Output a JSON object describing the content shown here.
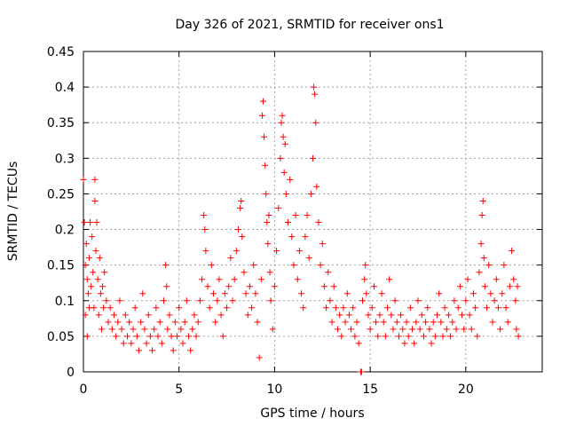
{
  "chart_data": {
    "type": "scatter",
    "title": "Day 326 of 2021, SRMTID for receiver ons1",
    "xlabel": "GPS time / hours",
    "ylabel": "SRMTID / TECUs",
    "xlim": [
      0,
      24
    ],
    "ylim": [
      0,
      0.45
    ],
    "x_ticks": [
      0,
      5,
      10,
      15,
      20
    ],
    "x_tick_labels": [
      "0",
      "5",
      "10",
      "15",
      "20"
    ],
    "y_ticks": [
      0,
      0.05,
      0.1,
      0.15,
      0.2,
      0.25,
      0.3,
      0.35,
      0.4,
      0.45
    ],
    "y_tick_labels": [
      "0",
      "0.05",
      "0.1",
      "0.15",
      "0.2",
      "0.25",
      "0.3",
      "0.35",
      "0.4",
      "0.45"
    ],
    "grid": true,
    "marker": "+",
    "marker_color": "#ff0000",
    "series": [
      {
        "name": "SRMTID",
        "points": [
          [
            0.0,
            0.27
          ],
          [
            0.05,
            0.21
          ],
          [
            0.1,
            0.15
          ],
          [
            0.1,
            0.08
          ],
          [
            0.15,
            0.18
          ],
          [
            0.2,
            0.13
          ],
          [
            0.2,
            0.05
          ],
          [
            0.25,
            0.11
          ],
          [
            0.3,
            0.16
          ],
          [
            0.3,
            0.09
          ],
          [
            0.35,
            0.21
          ],
          [
            0.4,
            0.12
          ],
          [
            0.45,
            0.19
          ],
          [
            0.5,
            0.14
          ],
          [
            0.55,
            0.09
          ],
          [
            0.6,
            0.27
          ],
          [
            0.6,
            0.24
          ],
          [
            0.65,
            0.17
          ],
          [
            0.7,
            0.21
          ],
          [
            0.75,
            0.13
          ],
          [
            0.8,
            0.08
          ],
          [
            0.85,
            0.16
          ],
          [
            0.9,
            0.11
          ],
          [
            0.95,
            0.06
          ],
          [
            1.0,
            0.12
          ],
          [
            1.05,
            0.09
          ],
          [
            1.1,
            0.14
          ],
          [
            1.2,
            0.1
          ],
          [
            1.3,
            0.07
          ],
          [
            1.4,
            0.09
          ],
          [
            1.5,
            0.06
          ],
          [
            1.6,
            0.08
          ],
          [
            1.7,
            0.05
          ],
          [
            1.8,
            0.07
          ],
          [
            1.9,
            0.1
          ],
          [
            2.0,
            0.06
          ],
          [
            2.1,
            0.04
          ],
          [
            2.2,
            0.08
          ],
          [
            2.3,
            0.05
          ],
          [
            2.4,
            0.07
          ],
          [
            2.5,
            0.04
          ],
          [
            2.6,
            0.06
          ],
          [
            2.7,
            0.09
          ],
          [
            2.8,
            0.05
          ],
          [
            2.9,
            0.03
          ],
          [
            3.0,
            0.07
          ],
          [
            3.1,
            0.11
          ],
          [
            3.2,
            0.06
          ],
          [
            3.3,
            0.04
          ],
          [
            3.4,
            0.08
          ],
          [
            3.5,
            0.05
          ],
          [
            3.6,
            0.03
          ],
          [
            3.7,
            0.06
          ],
          [
            3.8,
            0.09
          ],
          [
            3.9,
            0.05
          ],
          [
            4.0,
            0.07
          ],
          [
            4.1,
            0.04
          ],
          [
            4.2,
            0.1
          ],
          [
            4.3,
            0.15
          ],
          [
            4.35,
            0.12
          ],
          [
            4.4,
            0.06
          ],
          [
            4.5,
            0.08
          ],
          [
            4.6,
            0.05
          ],
          [
            4.7,
            0.03
          ],
          [
            4.8,
            0.07
          ],
          [
            4.9,
            0.05
          ],
          [
            5.0,
            0.09
          ],
          [
            5.1,
            0.06
          ],
          [
            5.2,
            0.04
          ],
          [
            5.3,
            0.07
          ],
          [
            5.4,
            0.1
          ],
          [
            5.5,
            0.05
          ],
          [
            5.6,
            0.03
          ],
          [
            5.7,
            0.06
          ],
          [
            5.8,
            0.08
          ],
          [
            5.9,
            0.05
          ],
          [
            6.0,
            0.07
          ],
          [
            6.1,
            0.1
          ],
          [
            6.2,
            0.13
          ],
          [
            6.3,
            0.22
          ],
          [
            6.35,
            0.2
          ],
          [
            6.4,
            0.17
          ],
          [
            6.5,
            0.12
          ],
          [
            6.6,
            0.09
          ],
          [
            6.7,
            0.15
          ],
          [
            6.8,
            0.11
          ],
          [
            6.9,
            0.07
          ],
          [
            7.0,
            0.1
          ],
          [
            7.1,
            0.13
          ],
          [
            7.2,
            0.08
          ],
          [
            7.3,
            0.05
          ],
          [
            7.4,
            0.11
          ],
          [
            7.5,
            0.09
          ],
          [
            7.6,
            0.12
          ],
          [
            7.7,
            0.16
          ],
          [
            7.8,
            0.1
          ],
          [
            7.9,
            0.13
          ],
          [
            8.0,
            0.17
          ],
          [
            8.1,
            0.2
          ],
          [
            8.2,
            0.23
          ],
          [
            8.25,
            0.24
          ],
          [
            8.3,
            0.19
          ],
          [
            8.4,
            0.14
          ],
          [
            8.5,
            0.11
          ],
          [
            8.6,
            0.08
          ],
          [
            8.7,
            0.12
          ],
          [
            8.8,
            0.09
          ],
          [
            8.9,
            0.15
          ],
          [
            9.0,
            0.11
          ],
          [
            9.1,
            0.07
          ],
          [
            9.2,
            0.02
          ],
          [
            9.3,
            0.13
          ],
          [
            9.35,
            0.36
          ],
          [
            9.4,
            0.38
          ],
          [
            9.45,
            0.33
          ],
          [
            9.5,
            0.29
          ],
          [
            9.55,
            0.25
          ],
          [
            9.6,
            0.21
          ],
          [
            9.65,
            0.18
          ],
          [
            9.7,
            0.22
          ],
          [
            9.75,
            0.14
          ],
          [
            9.8,
            0.1
          ],
          [
            9.9,
            0.06
          ],
          [
            10.0,
            0.12
          ],
          [
            10.1,
            0.17
          ],
          [
            10.2,
            0.23
          ],
          [
            10.3,
            0.3
          ],
          [
            10.35,
            0.35
          ],
          [
            10.4,
            0.36
          ],
          [
            10.45,
            0.33
          ],
          [
            10.5,
            0.28
          ],
          [
            10.55,
            0.32
          ],
          [
            10.6,
            0.25
          ],
          [
            10.7,
            0.21
          ],
          [
            10.8,
            0.27
          ],
          [
            10.9,
            0.19
          ],
          [
            11.0,
            0.15
          ],
          [
            11.1,
            0.22
          ],
          [
            11.2,
            0.13
          ],
          [
            11.3,
            0.17
          ],
          [
            11.4,
            0.11
          ],
          [
            11.5,
            0.09
          ],
          [
            11.6,
            0.19
          ],
          [
            11.7,
            0.22
          ],
          [
            11.8,
            0.16
          ],
          [
            11.9,
            0.25
          ],
          [
            12.0,
            0.3
          ],
          [
            12.05,
            0.4
          ],
          [
            12.1,
            0.39
          ],
          [
            12.15,
            0.35
          ],
          [
            12.2,
            0.26
          ],
          [
            12.3,
            0.21
          ],
          [
            12.4,
            0.15
          ],
          [
            12.5,
            0.18
          ],
          [
            12.6,
            0.12
          ],
          [
            12.7,
            0.09
          ],
          [
            12.8,
            0.14
          ],
          [
            12.9,
            0.1
          ],
          [
            13.0,
            0.07
          ],
          [
            13.1,
            0.12
          ],
          [
            13.2,
            0.09
          ],
          [
            13.3,
            0.06
          ],
          [
            13.4,
            0.08
          ],
          [
            13.5,
            0.05
          ],
          [
            13.6,
            0.09
          ],
          [
            13.7,
            0.07
          ],
          [
            13.8,
            0.11
          ],
          [
            13.9,
            0.08
          ],
          [
            14.0,
            0.06
          ],
          [
            14.1,
            0.09
          ],
          [
            14.2,
            0.05
          ],
          [
            14.3,
            0.07
          ],
          [
            14.4,
            0.04
          ],
          [
            14.5,
            0.0
          ],
          [
            14.55,
            0.0
          ],
          [
            14.6,
            0.1
          ],
          [
            14.7,
            0.13
          ],
          [
            14.75,
            0.15
          ],
          [
            14.8,
            0.11
          ],
          [
            14.9,
            0.08
          ],
          [
            15.0,
            0.06
          ],
          [
            15.1,
            0.09
          ],
          [
            15.2,
            0.12
          ],
          [
            15.3,
            0.07
          ],
          [
            15.4,
            0.05
          ],
          [
            15.5,
            0.08
          ],
          [
            15.6,
            0.11
          ],
          [
            15.7,
            0.07
          ],
          [
            15.8,
            0.05
          ],
          [
            15.9,
            0.09
          ],
          [
            16.0,
            0.13
          ],
          [
            16.1,
            0.08
          ],
          [
            16.2,
            0.06
          ],
          [
            16.3,
            0.1
          ],
          [
            16.4,
            0.07
          ],
          [
            16.5,
            0.05
          ],
          [
            16.6,
            0.08
          ],
          [
            16.7,
            0.06
          ],
          [
            16.8,
            0.04
          ],
          [
            16.9,
            0.07
          ],
          [
            17.0,
            0.05
          ],
          [
            17.1,
            0.09
          ],
          [
            17.2,
            0.06
          ],
          [
            17.3,
            0.04
          ],
          [
            17.4,
            0.07
          ],
          [
            17.5,
            0.1
          ],
          [
            17.6,
            0.06
          ],
          [
            17.7,
            0.08
          ],
          [
            17.8,
            0.05
          ],
          [
            17.9,
            0.07
          ],
          [
            18.0,
            0.09
          ],
          [
            18.1,
            0.06
          ],
          [
            18.2,
            0.04
          ],
          [
            18.3,
            0.07
          ],
          [
            18.4,
            0.05
          ],
          [
            18.5,
            0.08
          ],
          [
            18.6,
            0.11
          ],
          [
            18.7,
            0.07
          ],
          [
            18.8,
            0.05
          ],
          [
            18.9,
            0.09
          ],
          [
            19.0,
            0.06
          ],
          [
            19.1,
            0.08
          ],
          [
            19.2,
            0.05
          ],
          [
            19.3,
            0.07
          ],
          [
            19.4,
            0.1
          ],
          [
            19.5,
            0.06
          ],
          [
            19.6,
            0.09
          ],
          [
            19.7,
            0.12
          ],
          [
            19.8,
            0.08
          ],
          [
            19.9,
            0.06
          ],
          [
            20.0,
            0.1
          ],
          [
            20.1,
            0.13
          ],
          [
            20.2,
            0.08
          ],
          [
            20.3,
            0.06
          ],
          [
            20.4,
            0.11
          ],
          [
            20.5,
            0.09
          ],
          [
            20.6,
            0.05
          ],
          [
            20.7,
            0.14
          ],
          [
            20.8,
            0.18
          ],
          [
            20.85,
            0.22
          ],
          [
            20.9,
            0.24
          ],
          [
            20.95,
            0.16
          ],
          [
            21.0,
            0.12
          ],
          [
            21.1,
            0.09
          ],
          [
            21.2,
            0.15
          ],
          [
            21.3,
            0.11
          ],
          [
            21.4,
            0.07
          ],
          [
            21.5,
            0.1
          ],
          [
            21.6,
            0.13
          ],
          [
            21.7,
            0.09
          ],
          [
            21.8,
            0.06
          ],
          [
            21.9,
            0.11
          ],
          [
            22.0,
            0.15
          ],
          [
            22.1,
            0.09
          ],
          [
            22.2,
            0.07
          ],
          [
            22.3,
            0.12
          ],
          [
            22.4,
            0.17
          ],
          [
            22.5,
            0.13
          ],
          [
            22.6,
            0.1
          ],
          [
            22.65,
            0.06
          ],
          [
            22.7,
            0.12
          ],
          [
            22.75,
            0.05
          ]
        ]
      }
    ]
  }
}
